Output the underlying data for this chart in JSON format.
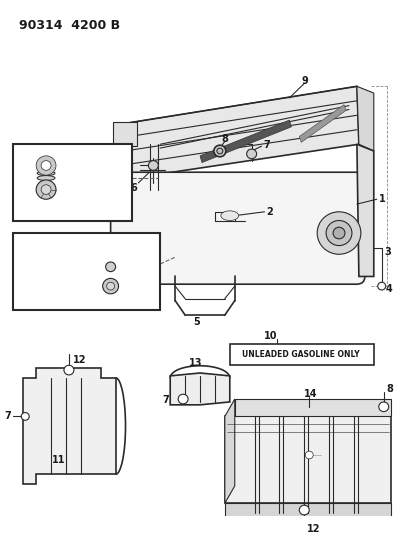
{
  "bg_color": "#ffffff",
  "line_color": "#2a2a2a",
  "text_color": "#1a1a1a",
  "label_fontsize": 7,
  "header_fontsize": 9,
  "fig_width": 4.0,
  "fig_height": 5.33,
  "dpi": 100,
  "header_text": "90314  4200 B",
  "unleaded_text": "UNLEADED GASOLINE ONLY"
}
